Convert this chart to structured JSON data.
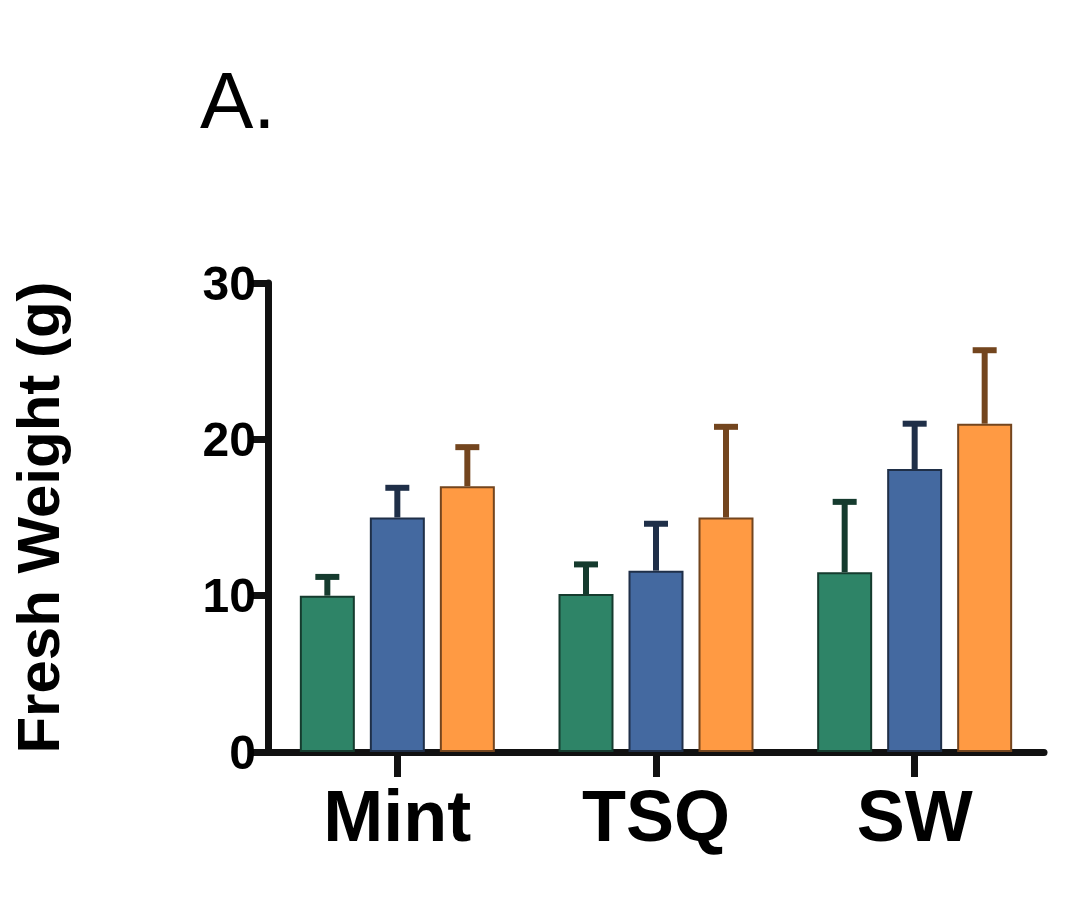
{
  "chart_data": {
    "type": "bar",
    "title": "A.",
    "ylabel": "Fresh Weight (g)",
    "categories": [
      "Mint",
      "TSQ",
      "SW"
    ],
    "series": [
      {
        "color": "#2e8467",
        "values": [
          10,
          10.1,
          11.5
        ],
        "errors": [
          [
            10,
            11.2
          ],
          [
            10.1,
            12
          ],
          [
            11.5,
            16
          ]
        ]
      },
      {
        "color": "#4469a0",
        "values": [
          15,
          11.6,
          18.1
        ],
        "errors": [
          [
            15,
            16.9
          ],
          [
            11.6,
            14.6
          ],
          [
            18.1,
            21
          ]
        ]
      },
      {
        "color": "#ff9a43",
        "values": [
          17,
          15,
          21
        ],
        "errors": [
          [
            17,
            19.5
          ],
          [
            15,
            20.8
          ],
          [
            21,
            25.7
          ]
        ]
      }
    ],
    "ylim": [
      0,
      30
    ],
    "yticks": [
      0,
      10,
      20,
      30
    ],
    "grid": false
  }
}
